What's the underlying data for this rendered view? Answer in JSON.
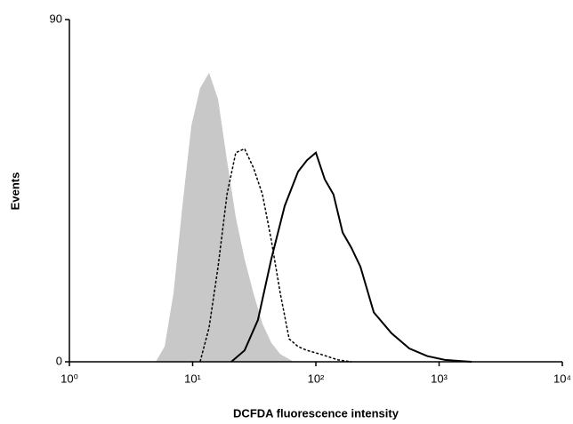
{
  "chart_data": {
    "type": "histogram-overlay",
    "x_label": "DCFDA fluorescence intensity",
    "y_label": "Events",
    "xscale": "log",
    "xlim": [
      1,
      10000
    ],
    "xticks": [
      {
        "value": 1,
        "label": "10⁰"
      },
      {
        "value": 10,
        "label": "10¹"
      },
      {
        "value": 100,
        "label": "10²"
      },
      {
        "value": 1000,
        "label": "10³"
      },
      {
        "value": 10000,
        "label": "10⁴"
      }
    ],
    "ylim": [
      0,
      90
    ],
    "yticks": [
      0,
      90
    ],
    "series": [
      {
        "style": "filled",
        "color": "#c8c8c8",
        "x": [
          5.02,
          5.92,
          7.0,
          8.26,
          9.75,
          11.5,
          13.6,
          16.1,
          19.0,
          22.4,
          26.4,
          31.2,
          36.9,
          43.5,
          51.4,
          66.0
        ],
        "values": [
          0,
          4,
          18,
          41,
          62,
          72,
          76,
          69,
          53,
          38,
          27,
          18,
          10,
          5,
          2,
          0
        ]
      },
      {
        "style": "dashed",
        "color": "#000000",
        "x": [
          11.5,
          13.6,
          16.1,
          19.0,
          22.4,
          26.4,
          31.2,
          36.9,
          43.5,
          51.4,
          60.7,
          71.7,
          84.7,
          108.7,
          151.6,
          194.4
        ],
        "values": [
          0,
          9,
          25,
          44,
          55,
          56,
          51,
          44,
          32,
          18,
          6,
          4,
          3,
          2,
          0.5,
          0
        ]
      },
      {
        "style": "solid",
        "color": "#000000",
        "x": [
          20.6,
          26.4,
          33.9,
          43.5,
          55.9,
          71.7,
          84.7,
          100,
          118,
          139,
          165,
          194,
          230,
          295,
          411,
          573,
          800,
          1114,
          1836
        ],
        "values": [
          0,
          3,
          11,
          27,
          41,
          50,
          53,
          55,
          48,
          44,
          34,
          30,
          25,
          13,
          7.5,
          3.5,
          1.5,
          0.5,
          0
        ]
      }
    ]
  }
}
